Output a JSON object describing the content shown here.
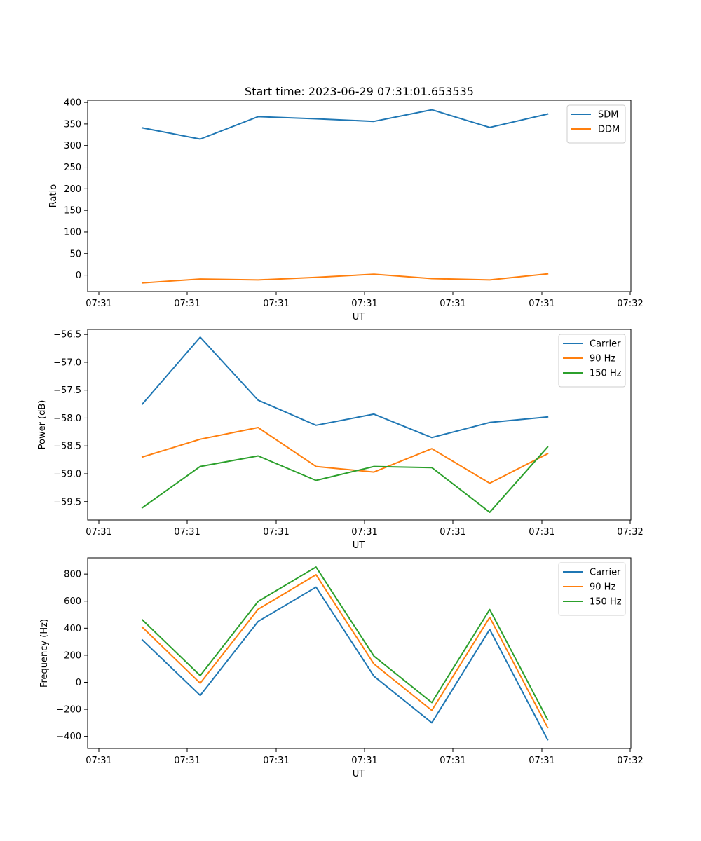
{
  "chart_data": [
    {
      "type": "line",
      "title": "Start time: 2023-06-29 07:31:01.653535",
      "xlabel": "UT",
      "ylabel": "Ratio",
      "xtick_labels": [
        "07:31",
        "07:31",
        "07:31",
        "07:31",
        "07:31",
        "07:31",
        "07:32"
      ],
      "ylim": [
        -38,
        405
      ],
      "yticks": [
        0,
        50,
        100,
        150,
        200,
        250,
        300,
        350,
        400
      ],
      "ytick_labels": [
        "0",
        "50",
        "100",
        "150",
        "200",
        "250",
        "300",
        "350",
        "400"
      ],
      "grid": false,
      "legend": "top-right",
      "series": [
        {
          "name": "SDM",
          "color": "#1f77b4",
          "values": [
            341,
            315,
            367,
            362,
            356,
            383,
            342,
            373
          ]
        },
        {
          "name": "DDM",
          "color": "#ff7f0e",
          "values": [
            -18,
            -9,
            -11,
            -5,
            2,
            -8,
            -11,
            3
          ]
        }
      ]
    },
    {
      "type": "line",
      "title": "",
      "xlabel": "UT",
      "ylabel": "Power (dB)",
      "xtick_labels": [
        "07:31",
        "07:31",
        "07:31",
        "07:31",
        "07:31",
        "07:31",
        "07:32"
      ],
      "ylim": [
        -59.83,
        -56.41
      ],
      "yticks": [
        -56.5,
        -57.0,
        -57.5,
        -58.0,
        -58.5,
        -59.0,
        -59.5
      ],
      "ytick_labels": [
        "−56.5",
        "−57.0",
        "−57.5",
        "−58.0",
        "−58.5",
        "−59.0",
        "−59.5"
      ],
      "grid": false,
      "legend": "top-right",
      "series": [
        {
          "name": "Carrier",
          "color": "#1f77b4",
          "values": [
            -57.75,
            -56.55,
            -57.68,
            -58.13,
            -57.93,
            -58.35,
            -58.08,
            -57.98
          ]
        },
        {
          "name": "90 Hz",
          "color": "#ff7f0e",
          "values": [
            -58.7,
            -58.38,
            -58.17,
            -58.87,
            -58.97,
            -58.55,
            -59.17,
            -58.64
          ]
        },
        {
          "name": "150 Hz",
          "color": "#2ca02c",
          "values": [
            -59.61,
            -58.87,
            -58.68,
            -59.12,
            -58.87,
            -58.89,
            -59.69,
            -58.52
          ]
        }
      ]
    },
    {
      "type": "line",
      "title": "",
      "xlabel": "UT",
      "ylabel": "Frequency (Hz)",
      "xtick_labels": [
        "07:31",
        "07:31",
        "07:31",
        "07:31",
        "07:31",
        "07:31",
        "07:32"
      ],
      "ylim": [
        -490,
        920
      ],
      "yticks": [
        800,
        600,
        400,
        200,
        0,
        -200,
        -400
      ],
      "ytick_labels": [
        "800",
        "600",
        "400",
        "200",
        "0",
        "−200",
        "−400"
      ],
      "grid": false,
      "legend": "top-right",
      "series": [
        {
          "name": "Carrier",
          "color": "#1f77b4",
          "values": [
            313,
            -97,
            450,
            704,
            45,
            -300,
            390,
            -425
          ]
        },
        {
          "name": "90 Hz",
          "color": "#ff7f0e",
          "values": [
            407,
            -7,
            540,
            795,
            135,
            -208,
            480,
            -335
          ]
        },
        {
          "name": "150 Hz",
          "color": "#2ca02c",
          "values": [
            462,
            49,
            598,
            852,
            193,
            -150,
            538,
            -277
          ]
        }
      ]
    }
  ]
}
